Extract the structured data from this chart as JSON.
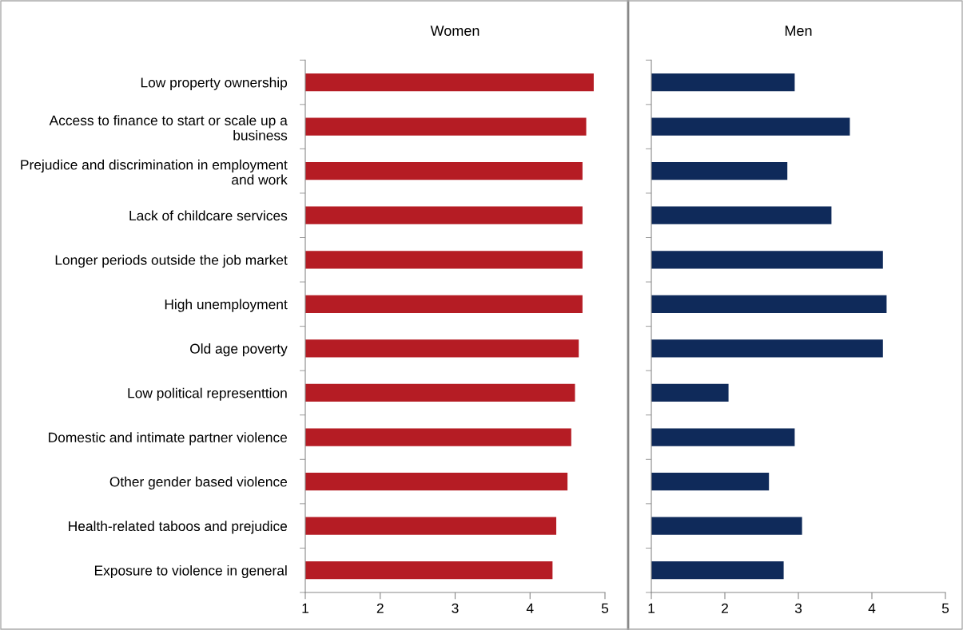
{
  "chart_data": [
    {
      "type": "bar",
      "orientation": "horizontal",
      "title": "Women",
      "categories": [
        "Low property ownership",
        "Access to finance to start or scale up a business",
        "Prejudice and discrimination in employment and work",
        "Lack of childcare services",
        "Longer periods outside the job market",
        "High unemployment",
        "Old age poverty",
        "Low political representtion",
        "Domestic and intimate partner violence",
        "Other gender based violence",
        "Health-related taboos and prejudice",
        "Exposure to violence in general"
      ],
      "values": [
        4.85,
        4.75,
        4.7,
        4.7,
        4.7,
        4.7,
        4.65,
        4.6,
        4.55,
        4.5,
        4.35,
        4.3
      ],
      "color": "#b51c24",
      "xlim": [
        1,
        5
      ],
      "xticks": [
        1,
        2,
        3,
        4,
        5
      ],
      "grid": false,
      "legend": false
    },
    {
      "type": "bar",
      "orientation": "horizontal",
      "title": "Men",
      "categories": [
        null,
        null,
        null,
        null,
        null,
        null,
        null,
        null,
        null,
        null,
        null,
        null
      ],
      "values": [
        2.95,
        3.7,
        2.85,
        3.45,
        4.15,
        4.2,
        4.15,
        2.05,
        2.95,
        2.6,
        3.05,
        2.8
      ],
      "color": "#0f2a5a",
      "xlim": [
        1,
        5
      ],
      "xticks": [
        1,
        2,
        3,
        4,
        5
      ],
      "grid": false,
      "legend": false
    }
  ]
}
